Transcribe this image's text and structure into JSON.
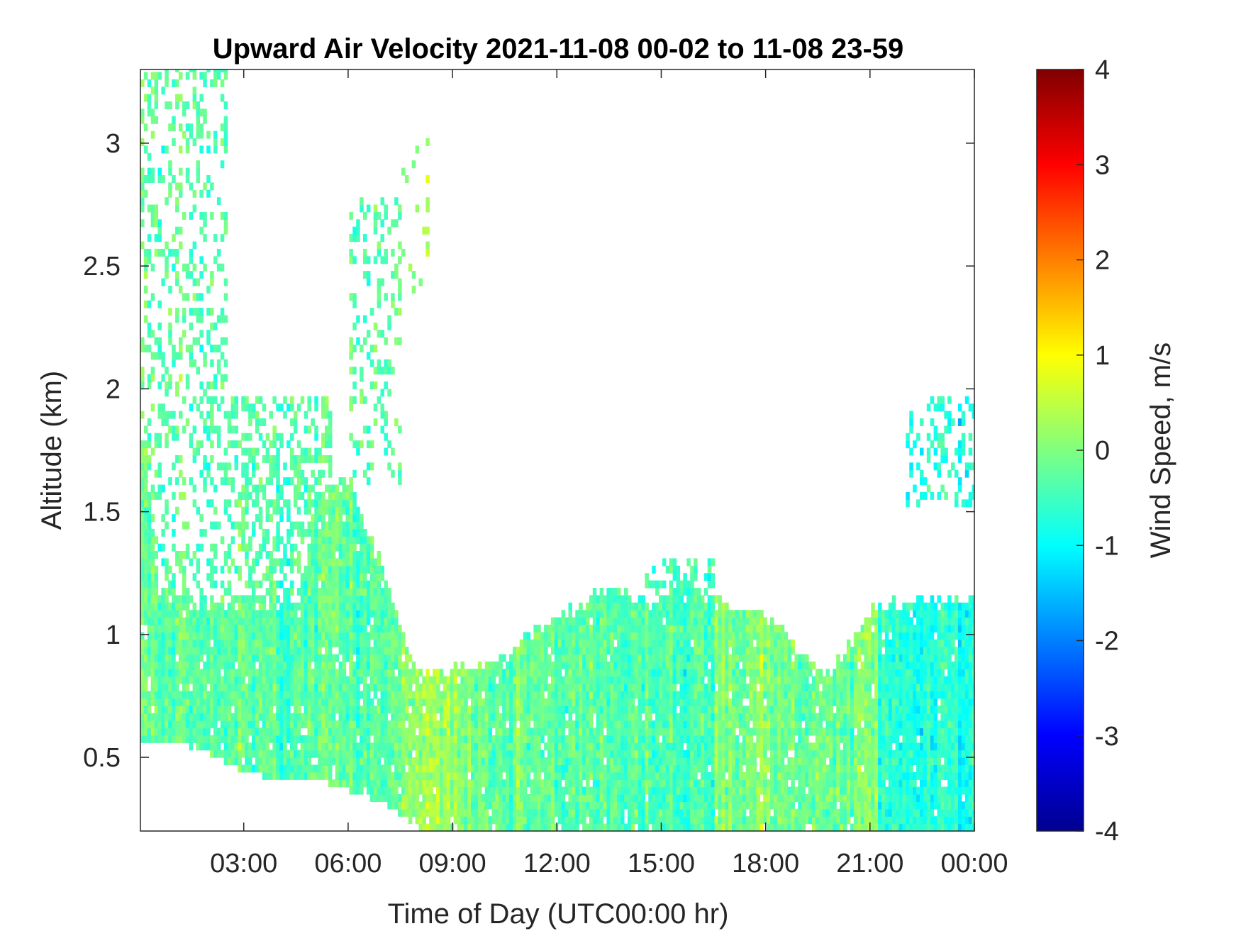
{
  "chart_data": {
    "type": "heatmap",
    "title": "Upward Air Velocity 2021-11-08 00-02 to 11-08 23-59",
    "xlabel": "Time of Day (UTC00:00 hr)",
    "ylabel": "Altitude (km)",
    "colorbar_label": "Wind Speed, m/s",
    "colormap": "jet",
    "xlim": [
      0.03,
      24.0
    ],
    "ylim": [
      0.2,
      3.3
    ],
    "clim": [
      -4,
      4
    ],
    "x_ticks": [
      {
        "value": 3,
        "label": "03:00"
      },
      {
        "value": 6,
        "label": "06:00"
      },
      {
        "value": 9,
        "label": "09:00"
      },
      {
        "value": 12,
        "label": "12:00"
      },
      {
        "value": 15,
        "label": "15:00"
      },
      {
        "value": 18,
        "label": "18:00"
      },
      {
        "value": 21,
        "label": "21:00"
      },
      {
        "value": 24,
        "label": "00:00"
      }
    ],
    "y_ticks": [
      {
        "value": 0.5,
        "label": "0.5"
      },
      {
        "value": 1,
        "label": "1"
      },
      {
        "value": 1.5,
        "label": "1.5"
      },
      {
        "value": 2,
        "label": "2"
      },
      {
        "value": 2.5,
        "label": "2.5"
      },
      {
        "value": 3,
        "label": "3"
      }
    ],
    "colorbar_ticks": [
      {
        "value": 4,
        "label": "4"
      },
      {
        "value": 3,
        "label": "3"
      },
      {
        "value": 2,
        "label": "2"
      },
      {
        "value": 1,
        "label": "1"
      },
      {
        "value": 0,
        "label": "0"
      },
      {
        "value": -1,
        "label": "-1"
      },
      {
        "value": -2,
        "label": "-2"
      },
      {
        "value": -3,
        "label": "-3"
      },
      {
        "value": -4,
        "label": "-4"
      }
    ],
    "data_top_km": [
      [
        0.03,
        1.8
      ],
      [
        0.5,
        1.15
      ],
      [
        1.0,
        1.15
      ],
      [
        1.5,
        1.1
      ],
      [
        2.0,
        1.1
      ],
      [
        2.5,
        1.1
      ],
      [
        3.0,
        1.12
      ],
      [
        3.5,
        1.1
      ],
      [
        4.0,
        1.12
      ],
      [
        4.5,
        1.1
      ],
      [
        5.0,
        1.5
      ],
      [
        5.5,
        1.6
      ],
      [
        6.0,
        1.6
      ],
      [
        6.5,
        1.4
      ],
      [
        7.0,
        1.25
      ],
      [
        7.5,
        1.0
      ],
      [
        8.0,
        0.85
      ],
      [
        8.5,
        0.82
      ],
      [
        9.0,
        0.85
      ],
      [
        9.5,
        0.85
      ],
      [
        10.0,
        0.85
      ],
      [
        10.5,
        0.9
      ],
      [
        11.0,
        0.98
      ],
      [
        11.5,
        1.02
      ],
      [
        12.0,
        1.05
      ],
      [
        12.5,
        1.1
      ],
      [
        13.0,
        1.15
      ],
      [
        13.5,
        1.2
      ],
      [
        14.0,
        1.15
      ],
      [
        14.5,
        1.1
      ],
      [
        15.0,
        1.15
      ],
      [
        15.5,
        1.2
      ],
      [
        16.0,
        1.15
      ],
      [
        16.5,
        1.15
      ],
      [
        17.0,
        1.1
      ],
      [
        17.5,
        1.1
      ],
      [
        18.0,
        1.05
      ],
      [
        18.5,
        1.0
      ],
      [
        19.0,
        0.9
      ],
      [
        19.5,
        0.85
      ],
      [
        20.0,
        0.88
      ],
      [
        20.5,
        0.98
      ],
      [
        21.0,
        1.08
      ],
      [
        21.5,
        1.12
      ],
      [
        22.0,
        1.12
      ],
      [
        23.0,
        1.12
      ],
      [
        24.0,
        1.12
      ]
    ],
    "data_bottom_km": [
      [
        0.03,
        0.55
      ],
      [
        1.0,
        0.55
      ],
      [
        2.0,
        0.5
      ],
      [
        3.0,
        0.42
      ],
      [
        4.0,
        0.4
      ],
      [
        5.0,
        0.4
      ],
      [
        6.0,
        0.35
      ],
      [
        7.0,
        0.3
      ],
      [
        8.0,
        0.2
      ],
      [
        24.0,
        0.2
      ]
    ],
    "sparse_regions": [
      {
        "x": [
          0.03,
          2.5
        ],
        "y": [
          1.1,
          3.3
        ],
        "density": 0.3
      },
      {
        "x": [
          2.5,
          5.5
        ],
        "y": [
          1.1,
          1.95
        ],
        "density": 0.45
      },
      {
        "x": [
          6.0,
          7.5
        ],
        "y": [
          1.6,
          2.8
        ],
        "density": 0.25
      },
      {
        "x": [
          7.5,
          8.3
        ],
        "y": [
          2.3,
          3.0
        ],
        "density": 0.1
      },
      {
        "x": [
          14.5,
          16.5
        ],
        "y": [
          1.15,
          1.3
        ],
        "density": 0.35
      },
      {
        "x": [
          22.0,
          24.0
        ],
        "y": [
          1.5,
          1.95
        ],
        "density": 0.3
      }
    ],
    "velocity_bands": [
      {
        "x": [
          7.5,
          9.5
        ],
        "mean": 0.3
      },
      {
        "x": [
          9.5,
          13.0
        ],
        "mean": -0.2
      },
      {
        "x": [
          13.0,
          16.5
        ],
        "mean": -0.4
      },
      {
        "x": [
          16.5,
          18.3
        ],
        "mean": 0.0
      },
      {
        "x": [
          18.3,
          20.5
        ],
        "mean": -0.1
      },
      {
        "x": [
          20.5,
          21.2
        ],
        "mean": 0.2
      },
      {
        "x": [
          21.2,
          24.0
        ],
        "mean": -0.7
      }
    ]
  }
}
